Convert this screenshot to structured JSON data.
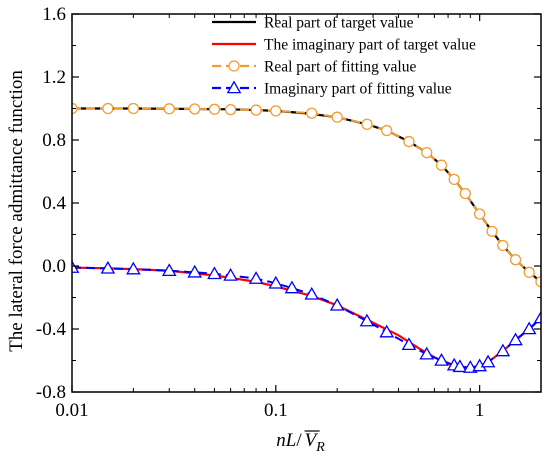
{
  "chart_data": {
    "type": "line",
    "xscale": "log",
    "xlim": [
      0.01,
      2
    ],
    "ylim": [
      -0.8,
      1.6
    ],
    "ylabel": "The lateral force admittance function",
    "xlabel": {
      "italic": "nL",
      "slash": "/",
      "v": "V",
      "sub": "R"
    },
    "x_ticks": [
      {
        "value": 0.01,
        "label": "0.01"
      },
      {
        "value": 0.1,
        "label": "0.1"
      },
      {
        "value": 1,
        "label": "1"
      }
    ],
    "y_ticks": [
      {
        "value": 1.6,
        "label": "1.6"
      },
      {
        "value": 1.2,
        "label": "1.2"
      },
      {
        "value": 0.8,
        "label": "0.8"
      },
      {
        "value": 0.4,
        "label": "0.4"
      },
      {
        "value": 0.0,
        "label": "0.0"
      },
      {
        "value": -0.4,
        "label": "-0.4"
      },
      {
        "value": -0.8,
        "label": "-0.8"
      }
    ],
    "legend_position": "top-right",
    "series": [
      {
        "name": "Real part of target value",
        "color": "#000000",
        "style": "solid",
        "marker": "none",
        "x": [
          0.01,
          0.02,
          0.04,
          0.06,
          0.08,
          0.1,
          0.14,
          0.2,
          0.28,
          0.35,
          0.45,
          0.55,
          0.65,
          0.75,
          0.85,
          1.0,
          1.15,
          1.3,
          1.5,
          1.75,
          2.0
        ],
        "y": [
          1.0,
          1.0,
          0.997,
          0.995,
          0.99,
          0.985,
          0.97,
          0.945,
          0.9,
          0.86,
          0.79,
          0.72,
          0.64,
          0.55,
          0.46,
          0.33,
          0.22,
          0.13,
          0.04,
          -0.04,
          -0.1
        ]
      },
      {
        "name": "The imaginary part of target value",
        "color": "#ff0000",
        "style": "solid",
        "marker": "none",
        "x": [
          0.01,
          0.015,
          0.02,
          0.03,
          0.05,
          0.08,
          0.1,
          0.15,
          0.2,
          0.3,
          0.4,
          0.5,
          0.6,
          0.7,
          0.8,
          0.9,
          1.0,
          1.1,
          1.3,
          1.5,
          1.75,
          2.0
        ],
        "y": [
          -0.01,
          -0.015,
          -0.02,
          -0.03,
          -0.06,
          -0.1,
          -0.13,
          -0.19,
          -0.25,
          -0.36,
          -0.44,
          -0.52,
          -0.58,
          -0.62,
          -0.64,
          -0.645,
          -0.635,
          -0.61,
          -0.54,
          -0.47,
          -0.4,
          -0.33
        ]
      },
      {
        "name": "Real part of fitting value",
        "color": "#f39c33",
        "style": "dashed",
        "marker": "circle",
        "x": [
          0.01,
          0.015,
          0.02,
          0.03,
          0.04,
          0.05,
          0.06,
          0.08,
          0.1,
          0.15,
          0.2,
          0.28,
          0.35,
          0.45,
          0.55,
          0.65,
          0.75,
          0.85,
          1.0,
          1.15,
          1.3,
          1.5,
          1.75,
          2.0
        ],
        "y": [
          1.0,
          1.0,
          1.0,
          0.998,
          0.997,
          0.995,
          0.993,
          0.99,
          0.985,
          0.97,
          0.945,
          0.9,
          0.86,
          0.79,
          0.72,
          0.64,
          0.55,
          0.46,
          0.33,
          0.22,
          0.13,
          0.04,
          -0.04,
          -0.1
        ],
        "marker_x": [
          0.01,
          0.015,
          0.02,
          0.03,
          0.04,
          0.05,
          0.06,
          0.08,
          0.1,
          0.15,
          0.2,
          0.28,
          0.35,
          0.45,
          0.55,
          0.65,
          0.75,
          0.85,
          1.0,
          1.15,
          1.3,
          1.5,
          1.75,
          2.0
        ]
      },
      {
        "name": "Imaginary part of fitting value",
        "color": "#0000ff",
        "style": "dashed",
        "marker": "triangle",
        "x": [
          0.01,
          0.015,
          0.02,
          0.03,
          0.04,
          0.05,
          0.06,
          0.08,
          0.1,
          0.12,
          0.15,
          0.2,
          0.28,
          0.35,
          0.45,
          0.55,
          0.65,
          0.75,
          0.8,
          0.9,
          1.0,
          1.1,
          1.3,
          1.5,
          1.75,
          2.0
        ],
        "y": [
          -0.01,
          -0.015,
          -0.02,
          -0.03,
          -0.04,
          -0.05,
          -0.06,
          -0.08,
          -0.11,
          -0.14,
          -0.18,
          -0.25,
          -0.35,
          -0.42,
          -0.5,
          -0.56,
          -0.6,
          -0.63,
          -0.64,
          -0.645,
          -0.635,
          -0.61,
          -0.54,
          -0.47,
          -0.4,
          -0.33
        ]
      }
    ]
  }
}
